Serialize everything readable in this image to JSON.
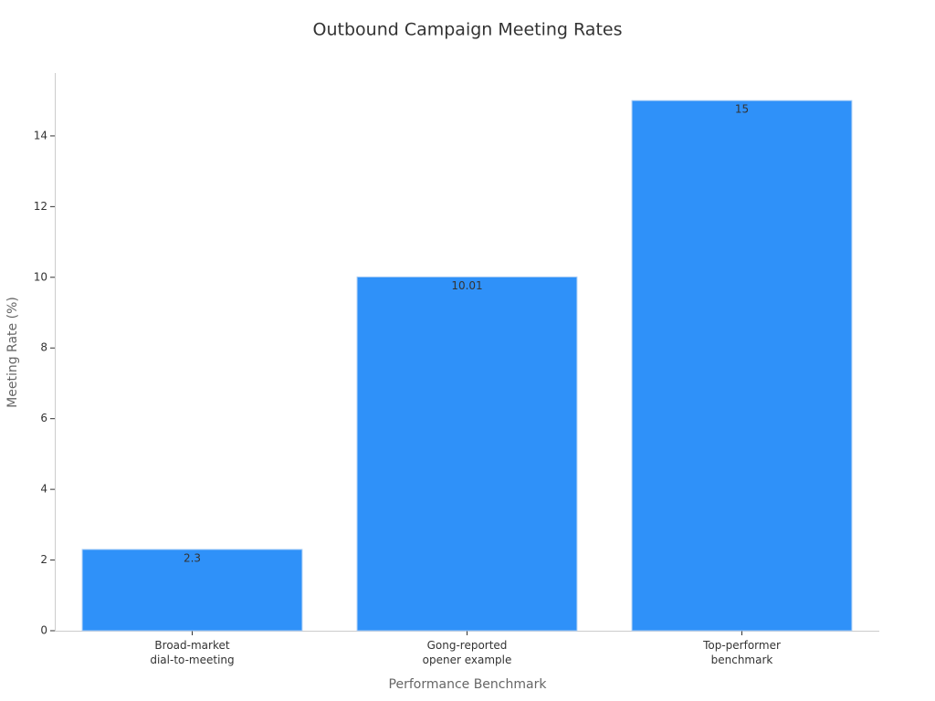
{
  "chart_data": {
    "type": "bar",
    "title": "Outbound Campaign Meeting Rates",
    "x_label": "Performance Benchmark",
    "y_label": "Meeting Rate (%)",
    "categories": [
      "Broad-market\ndial-to-meeting",
      "Gong-reported\nopener example",
      "Top-performer\nbenchmark"
    ],
    "values": [
      2.3,
      10.01,
      15
    ],
    "color": "#2f91f9",
    "ylim": [
      0,
      15.78
    ],
    "yticks": [
      0,
      2,
      4,
      6,
      8,
      10,
      12,
      14
    ],
    "grid": false,
    "data_labels": true
  }
}
